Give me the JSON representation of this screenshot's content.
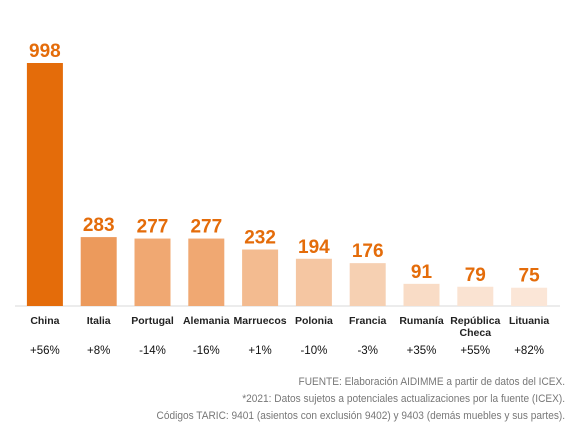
{
  "chart_data": {
    "type": "bar",
    "title": "",
    "xlabel": "",
    "ylabel": "",
    "ylim": [
      0,
      998
    ],
    "grid": false,
    "legend": "none",
    "categories": [
      "China",
      "Italia",
      "Portugal",
      "Alemania",
      "Marruecos",
      "Polonia",
      "Francia",
      "Rumanía",
      "República Checa",
      "Lituania"
    ],
    "values": [
      998,
      283,
      277,
      277,
      232,
      194,
      176,
      91,
      79,
      75
    ],
    "value_labels": [
      "998",
      "283",
      "277",
      "277",
      "232",
      "194",
      "176",
      "91",
      "79",
      "75"
    ],
    "changes": [
      "+56%",
      "+8%",
      "-14%",
      "-16%",
      "+1%",
      "-10%",
      "-3%",
      "+35%",
      "+55%",
      "+82%"
    ],
    "colors": [
      "#e46c0a",
      "#ec9a5c",
      "#f0a872",
      "#f0a872",
      "#f3bb90",
      "#f5c6a2",
      "#f6d0b2",
      "#f9dcc6",
      "#fae3d2",
      "#fbe6d7"
    ],
    "value_label_color": "#e46c0a"
  },
  "footer": {
    "line1": "FUENTE: Elaboración AIDIMME  a partir de datos del ICEX.",
    "line2": "*2021: Datos sujetos a potenciales actualizaciones por la fuente (ICEX).",
    "line3": "Códigos TARIC: 9401 (asientos con exclusión 9402) y 9403 (demás muebles y sus partes)."
  }
}
